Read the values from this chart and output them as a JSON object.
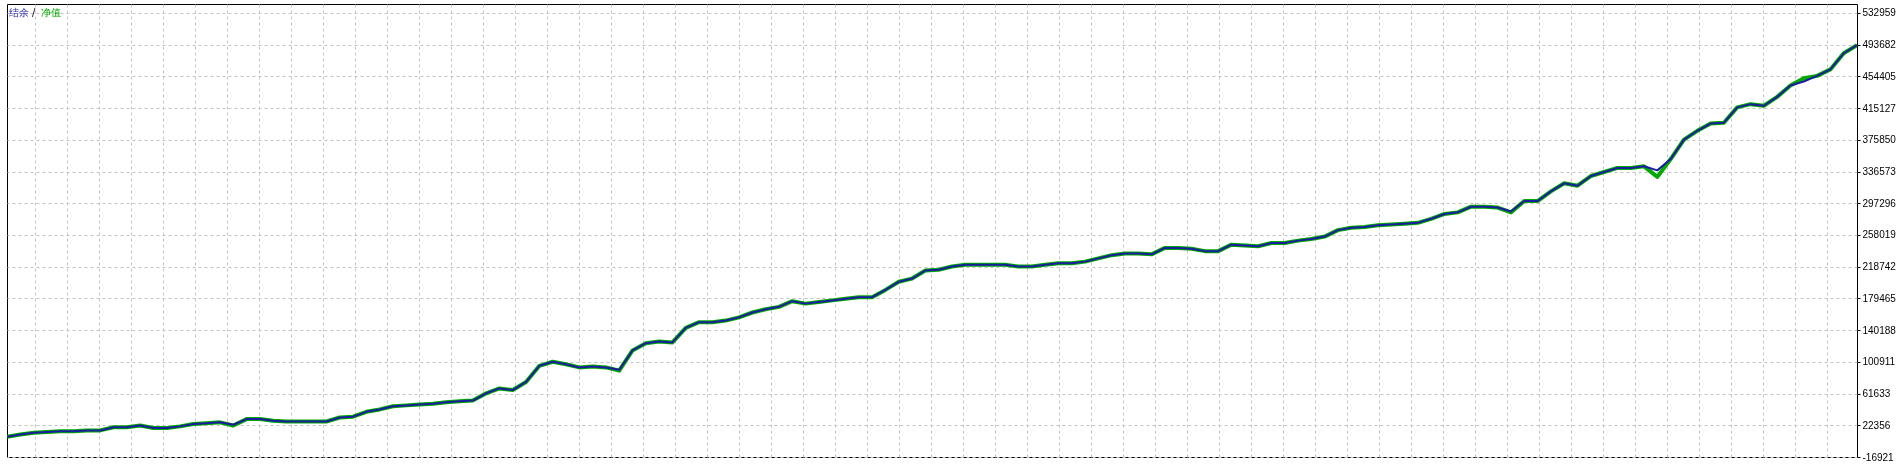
{
  "chart_data": {
    "type": "line",
    "categories": [
      null,
      null,
      null,
      null,
      null,
      null,
      null,
      null,
      null,
      null,
      null,
      null,
      null,
      null,
      null,
      null,
      null,
      null,
      null,
      null,
      null,
      null,
      null,
      null,
      null,
      null,
      null,
      null,
      null,
      null,
      null,
      null,
      null,
      null,
      null,
      null,
      null,
      null,
      null,
      null,
      null,
      null,
      null,
      null,
      null,
      null,
      null,
      null,
      null,
      null,
      null,
      null,
      null,
      null,
      null,
      null,
      null,
      null,
      null,
      null,
      null,
      null,
      null,
      null,
      null,
      null,
      null,
      null,
      null,
      null,
      null,
      null,
      null,
      null,
      null,
      null,
      null,
      null,
      null,
      null,
      null,
      null,
      null,
      null,
      null,
      null,
      null,
      null,
      null,
      null,
      null,
      null,
      null,
      null,
      null,
      null,
      null,
      null,
      null,
      null,
      null,
      null,
      null,
      null,
      null,
      null,
      null,
      null,
      null,
      null,
      null,
      null,
      null,
      null,
      null,
      null,
      null,
      null,
      null,
      null,
      null,
      null,
      null,
      null,
      null,
      null,
      null,
      null,
      null,
      null,
      null,
      null,
      null,
      null,
      null,
      null,
      null,
      null,
      null,
      null
    ],
    "series": [
      {
        "name": "结余",
        "color": "#1c1ca0",
        "values": [
          8000,
          11000,
          13000,
          14000,
          15000,
          15000,
          16000,
          16000,
          20000,
          20000,
          22000,
          19000,
          19000,
          21000,
          24000,
          25000,
          26000,
          23000,
          30000,
          30000,
          28000,
          27000,
          27000,
          27000,
          27000,
          32000,
          33000,
          39000,
          42000,
          46000,
          47000,
          48000,
          49000,
          51000,
          52000,
          53000,
          62000,
          68000,
          66000,
          76000,
          96000,
          101000,
          98000,
          94000,
          95000,
          94000,
          91000,
          115000,
          124000,
          126000,
          125000,
          143000,
          150000,
          150000,
          152000,
          156000,
          162000,
          166000,
          169000,
          176000,
          173000,
          175000,
          177000,
          179000,
          181000,
          181000,
          190000,
          200000,
          204000,
          214000,
          215000,
          219000,
          221000,
          221000,
          221000,
          221000,
          219000,
          219000,
          221000,
          223000,
          223000,
          225000,
          229000,
          233000,
          235000,
          235000,
          234000,
          242000,
          242000,
          241000,
          238000,
          238000,
          246000,
          245000,
          244000,
          248000,
          248000,
          251000,
          253000,
          256000,
          264000,
          267000,
          268000,
          270000,
          271000,
          272000,
          273000,
          278000,
          284000,
          286000,
          293000,
          293000,
          292000,
          287000,
          300000,
          300000,
          312000,
          322000,
          319000,
          331000,
          336000,
          341000,
          341000,
          343000,
          338000,
          352000,
          376000,
          387000,
          396000,
          397000,
          416000,
          420000,
          418000,
          429000,
          443000,
          448000,
          455000,
          463000,
          483000,
          493000
        ]
      },
      {
        "name": "净值",
        "color": "#00a800",
        "values": [
          8000,
          11000,
          13000,
          14000,
          15000,
          15000,
          16000,
          16000,
          20000,
          20000,
          22000,
          19000,
          19000,
          21000,
          24000,
          25000,
          26000,
          22000,
          30000,
          30000,
          28000,
          27000,
          27000,
          27000,
          27000,
          32000,
          33000,
          39000,
          42000,
          46000,
          47000,
          48000,
          49000,
          51000,
          52000,
          53000,
          62000,
          68000,
          66000,
          76000,
          96000,
          101000,
          98000,
          94000,
          95000,
          94000,
          90000,
          115000,
          124000,
          126000,
          125000,
          143000,
          150000,
          150000,
          152000,
          156000,
          162000,
          166000,
          169000,
          176000,
          173000,
          175000,
          177000,
          179000,
          181000,
          181000,
          190000,
          200000,
          204000,
          214000,
          215000,
          219000,
          221000,
          221000,
          221000,
          221000,
          219000,
          219000,
          221000,
          223000,
          223000,
          225000,
          229000,
          233000,
          235000,
          235000,
          234000,
          242000,
          242000,
          241000,
          238000,
          238000,
          246000,
          245000,
          244000,
          248000,
          248000,
          251000,
          253000,
          256000,
          264000,
          267000,
          268000,
          270000,
          271000,
          272000,
          273000,
          278000,
          284000,
          286000,
          293000,
          293000,
          292000,
          286000,
          300000,
          300000,
          312000,
          322000,
          319000,
          331000,
          336000,
          341000,
          341000,
          343000,
          330000,
          352000,
          376000,
          387000,
          396000,
          397000,
          416000,
          420000,
          418000,
          429000,
          443000,
          452000,
          455000,
          463000,
          483000,
          493000
        ]
      }
    ],
    "ylim": [
      -16921,
      544000
    ],
    "yticks": [
      532959,
      493682,
      454405,
      415127,
      375850,
      336573,
      297296,
      258019,
      218742,
      179465,
      140188,
      100911,
      61633,
      22356,
      -16921
    ],
    "grid": true,
    "legend": "top left",
    "tick_labels": "y",
    "annotations": [
      "/"
    ]
  }
}
